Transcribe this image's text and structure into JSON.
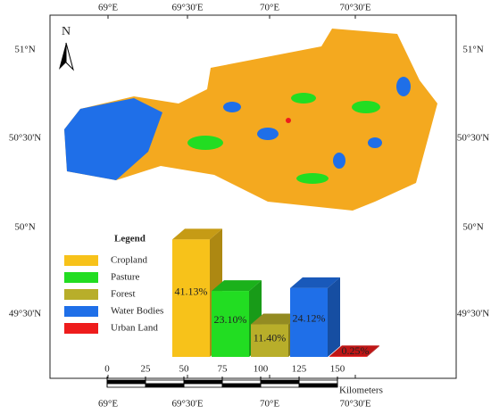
{
  "map": {
    "north": "N",
    "lon_labels": [
      "69°E",
      "69°30'E",
      "70°E",
      "70°30'E"
    ],
    "lat_labels": [
      "51°N",
      "50°30'N",
      "50°N",
      "49°30'N"
    ]
  },
  "scale": {
    "ticks": [
      0,
      25,
      50,
      75,
      100,
      125,
      150
    ],
    "unit": "Kilometers"
  },
  "chart_data": {
    "type": "bar",
    "legend_title": "Legend",
    "categories": [
      "Cropland",
      "Pasture",
      "Forest",
      "Water Bodies",
      "Urban Land"
    ],
    "values": [
      41.13,
      23.1,
      11.4,
      24.12,
      0.25
    ],
    "value_labels": [
      "41.13%",
      "23.10%",
      "11.40%",
      "24.12%",
      "0.25%"
    ],
    "colors": [
      "#f7c21a",
      "#22dd22",
      "#b8ae2a",
      "#1f6fe8",
      "#ee1c1c"
    ]
  }
}
